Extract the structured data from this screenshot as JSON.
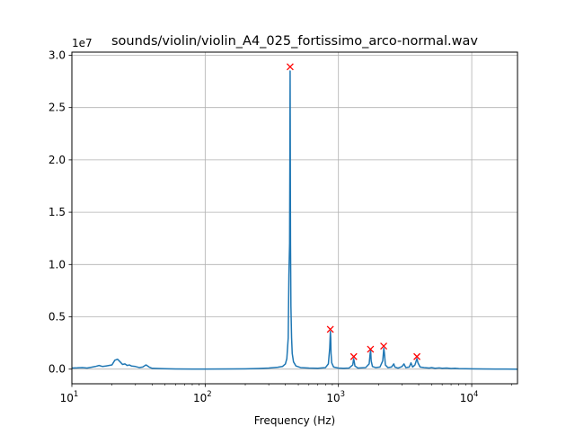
{
  "chart_data": {
    "type": "line",
    "title": "sounds/violin/violin_A4_025_fortissimo_arco-normal.wav",
    "xlabel": "Frequency (Hz)",
    "ylabel": "",
    "x_scale": "log",
    "xlim": [
      10,
      22050
    ],
    "ylim": [
      -1400000,
      30300000
    ],
    "y_offset_label": "1e7",
    "grid": true,
    "legend": "none",
    "x_ticks": [
      {
        "value": 10,
        "base": "10",
        "exp": "1"
      },
      {
        "value": 100,
        "base": "10",
        "exp": "2"
      },
      {
        "value": 1000,
        "base": "10",
        "exp": "3"
      },
      {
        "value": 10000,
        "base": "10",
        "exp": "4"
      }
    ],
    "y_ticks": [
      {
        "value": 0,
        "label": "0.0"
      },
      {
        "value": 5000000,
        "label": "0.5"
      },
      {
        "value": 10000000,
        "label": "1.0"
      },
      {
        "value": 15000000,
        "label": "1.5"
      },
      {
        "value": 20000000,
        "label": "2.0"
      },
      {
        "value": 25000000,
        "label": "2.5"
      },
      {
        "value": 30000000,
        "label": "3.0"
      }
    ],
    "colors": {
      "line": "#1f77b4",
      "marker": "#ff0000",
      "grid": "#b0b0b0"
    },
    "series": [
      {
        "points": [
          [
            10,
            100000
          ],
          [
            11,
            120000
          ],
          [
            12,
            150000
          ],
          [
            13,
            100000
          ],
          [
            14,
            180000
          ],
          [
            15,
            250000
          ],
          [
            16,
            350000
          ],
          [
            17,
            250000
          ],
          [
            18,
            300000
          ],
          [
            19,
            350000
          ],
          [
            20,
            400000
          ],
          [
            21,
            850000
          ],
          [
            22,
            950000
          ],
          [
            23,
            700000
          ],
          [
            24,
            450000
          ],
          [
            25,
            500000
          ],
          [
            26,
            350000
          ],
          [
            27,
            400000
          ],
          [
            28,
            300000
          ],
          [
            30,
            250000
          ],
          [
            32,
            150000
          ],
          [
            34,
            200000
          ],
          [
            36,
            400000
          ],
          [
            38,
            200000
          ],
          [
            40,
            80000
          ],
          [
            50,
            40000
          ],
          [
            60,
            20000
          ],
          [
            80,
            10000
          ],
          [
            100,
            5000
          ],
          [
            150,
            20000
          ],
          [
            200,
            30000
          ],
          [
            250,
            60000
          ],
          [
            300,
            100000
          ],
          [
            350,
            180000
          ],
          [
            380,
            250000
          ],
          [
            400,
            500000
          ],
          [
            410,
            1000000
          ],
          [
            420,
            3000000
          ],
          [
            425,
            9000000
          ],
          [
            430,
            12000000
          ],
          [
            432,
            20000000
          ],
          [
            434,
            28500000
          ],
          [
            437,
            12000000
          ],
          [
            440,
            6000000
          ],
          [
            445,
            3000000
          ],
          [
            450,
            1500000
          ],
          [
            460,
            700000
          ],
          [
            480,
            300000
          ],
          [
            520,
            150000
          ],
          [
            600,
            100000
          ],
          [
            700,
            80000
          ],
          [
            800,
            150000
          ],
          [
            840,
            500000
          ],
          [
            860,
            2000000
          ],
          [
            870,
            3600000
          ],
          [
            875,
            3000000
          ],
          [
            880,
            1500000
          ],
          [
            890,
            600000
          ],
          [
            920,
            200000
          ],
          [
            1000,
            100000
          ],
          [
            1100,
            80000
          ],
          [
            1200,
            100000
          ],
          [
            1280,
            400000
          ],
          [
            1300,
            1000000
          ],
          [
            1310,
            800000
          ],
          [
            1330,
            300000
          ],
          [
            1400,
            100000
          ],
          [
            1600,
            150000
          ],
          [
            1700,
            500000
          ],
          [
            1730,
            1500000
          ],
          [
            1745,
            1800000
          ],
          [
            1760,
            800000
          ],
          [
            1800,
            250000
          ],
          [
            1900,
            150000
          ],
          [
            2050,
            200000
          ],
          [
            2150,
            800000
          ],
          [
            2190,
            2000000
          ],
          [
            2210,
            1600000
          ],
          [
            2250,
            400000
          ],
          [
            2350,
            150000
          ],
          [
            2500,
            200000
          ],
          [
            2600,
            500000
          ],
          [
            2650,
            200000
          ],
          [
            2800,
            100000
          ],
          [
            3000,
            250000
          ],
          [
            3100,
            500000
          ],
          [
            3200,
            150000
          ],
          [
            3400,
            200000
          ],
          [
            3500,
            600000
          ],
          [
            3600,
            200000
          ],
          [
            3750,
            400000
          ],
          [
            3880,
            1000000
          ],
          [
            3950,
            600000
          ],
          [
            4100,
            200000
          ],
          [
            4400,
            150000
          ],
          [
            4800,
            100000
          ],
          [
            5000,
            150000
          ],
          [
            5300,
            80000
          ],
          [
            5700,
            120000
          ],
          [
            6000,
            80000
          ],
          [
            6500,
            100000
          ],
          [
            7000,
            60000
          ],
          [
            7500,
            80000
          ],
          [
            8000,
            50000
          ],
          [
            9000,
            40000
          ],
          [
            10000,
            30000
          ],
          [
            12000,
            20000
          ],
          [
            15000,
            10000
          ],
          [
            18000,
            5000
          ],
          [
            22050,
            0
          ]
        ]
      }
    ],
    "peaks": [
      {
        "x": 434,
        "y": 28900000
      },
      {
        "x": 869,
        "y": 3800000
      },
      {
        "x": 1303,
        "y": 1200000
      },
      {
        "x": 1740,
        "y": 1900000
      },
      {
        "x": 2185,
        "y": 2200000
      },
      {
        "x": 3880,
        "y": 1200000
      }
    ]
  }
}
